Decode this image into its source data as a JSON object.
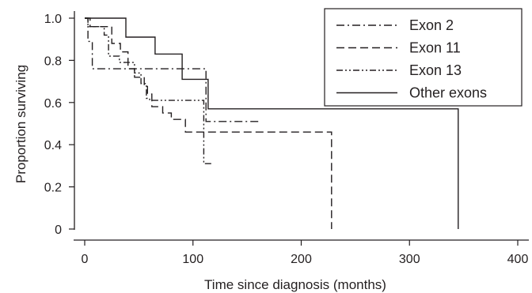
{
  "chart_data": {
    "type": "line",
    "subtype": "kaplan-meier-step",
    "title": "",
    "xlabel": "Time since diagnosis (months)",
    "ylabel": "Proportion surviving",
    "xlim": [
      0,
      400
    ],
    "ylim": [
      0,
      1.0
    ],
    "xticks": [
      0,
      100,
      200,
      300,
      400
    ],
    "xtick_labels": [
      "0",
      "100",
      "200",
      "300",
      "400"
    ],
    "yticks": [
      0,
      0.2,
      0.4,
      0.6,
      0.8,
      1.0
    ],
    "ytick_labels": [
      "0",
      "0.2",
      "0.4",
      "0.6",
      "0.8",
      "1.0"
    ],
    "grid": false,
    "legend_position": "top-right",
    "series": [
      {
        "name": "Exon 2",
        "dash": "dash-dot",
        "points": [
          [
            0,
            1.0
          ],
          [
            3,
            1.0
          ],
          [
            3,
            0.89
          ],
          [
            7,
            0.89
          ],
          [
            7,
            0.76
          ],
          [
            112,
            0.76
          ],
          [
            112,
            0.51
          ],
          [
            162,
            0.51
          ]
        ]
      },
      {
        "name": "Exon 11",
        "dash": "dash",
        "points": [
          [
            0,
            1.0
          ],
          [
            5,
            1.0
          ],
          [
            5,
            0.96
          ],
          [
            25,
            0.96
          ],
          [
            25,
            0.88
          ],
          [
            33,
            0.88
          ],
          [
            33,
            0.84
          ],
          [
            40,
            0.84
          ],
          [
            40,
            0.76
          ],
          [
            46,
            0.76
          ],
          [
            46,
            0.72
          ],
          [
            55,
            0.72
          ],
          [
            55,
            0.68
          ],
          [
            58,
            0.68
          ],
          [
            58,
            0.64
          ],
          [
            62,
            0.64
          ],
          [
            62,
            0.58
          ],
          [
            72,
            0.58
          ],
          [
            72,
            0.55
          ],
          [
            80,
            0.55
          ],
          [
            80,
            0.52
          ],
          [
            93,
            0.52
          ],
          [
            93,
            0.46
          ],
          [
            228,
            0.46
          ],
          [
            228,
            0.0
          ]
        ]
      },
      {
        "name": "Exon 13",
        "dash": "dash-dot-dot",
        "points": [
          [
            0,
            1.0
          ],
          [
            3,
            1.0
          ],
          [
            3,
            0.96
          ],
          [
            18,
            0.96
          ],
          [
            18,
            0.92
          ],
          [
            22,
            0.92
          ],
          [
            22,
            0.82
          ],
          [
            32,
            0.82
          ],
          [
            32,
            0.79
          ],
          [
            46,
            0.79
          ],
          [
            46,
            0.74
          ],
          [
            52,
            0.74
          ],
          [
            52,
            0.69
          ],
          [
            57,
            0.69
          ],
          [
            57,
            0.62
          ],
          [
            60,
            0.62
          ],
          [
            60,
            0.61
          ],
          [
            110,
            0.61
          ],
          [
            110,
            0.31
          ],
          [
            118,
            0.31
          ]
        ]
      },
      {
        "name": "Other exons",
        "dash": "solid",
        "points": [
          [
            0,
            1.0
          ],
          [
            38,
            1.0
          ],
          [
            38,
            0.91
          ],
          [
            65,
            0.91
          ],
          [
            65,
            0.83
          ],
          [
            90,
            0.83
          ],
          [
            90,
            0.71
          ],
          [
            114,
            0.71
          ],
          [
            114,
            0.57
          ],
          [
            345,
            0.57
          ],
          [
            345,
            0.0
          ]
        ]
      }
    ]
  }
}
